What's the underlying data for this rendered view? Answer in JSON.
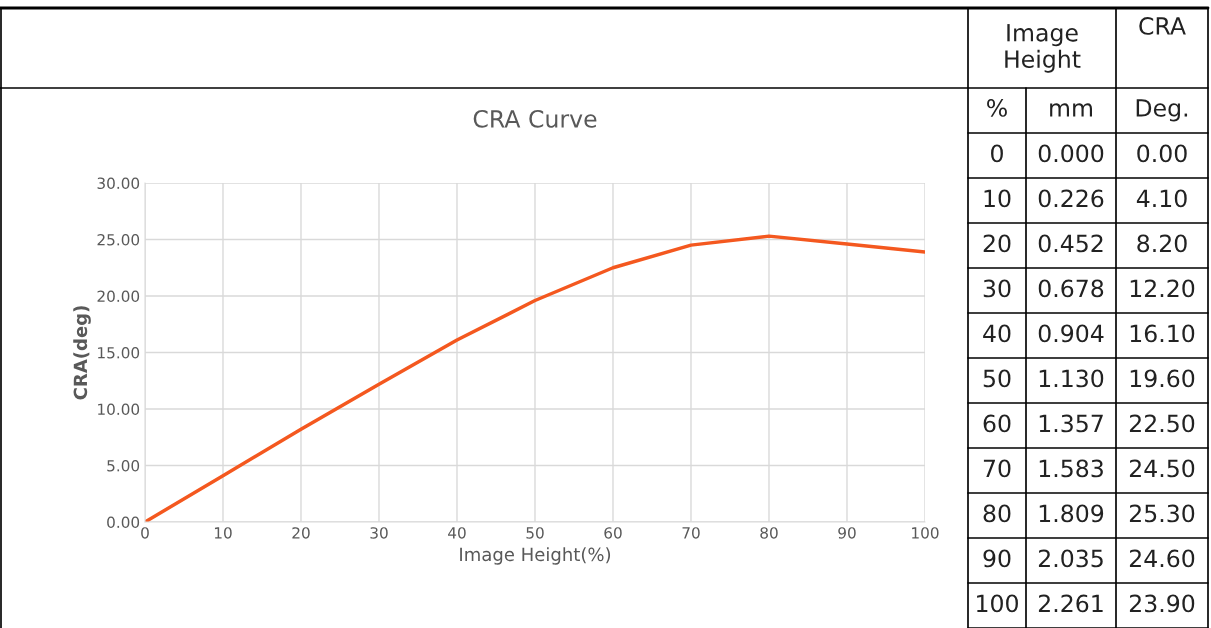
{
  "chart_data": {
    "type": "line",
    "title": "CRA Curve",
    "xlabel": "Image Height(%)",
    "ylabel": "CRA(deg)",
    "x": [
      0,
      10,
      20,
      30,
      40,
      50,
      60,
      70,
      80,
      90,
      100
    ],
    "series": [
      {
        "color": "#f4581f",
        "values": [
          0.0,
          4.1,
          8.2,
          12.2,
          16.1,
          19.6,
          22.5,
          24.5,
          25.3,
          24.6,
          23.9
        ]
      }
    ],
    "xlim": [
      0,
      100
    ],
    "xticks": [
      0,
      10,
      20,
      30,
      40,
      50,
      60,
      70,
      80,
      90,
      100
    ],
    "ylim": [
      0,
      30
    ],
    "yticks": [
      {
        "value": 0,
        "label": "0.00"
      },
      {
        "value": 5,
        "label": "5.00"
      },
      {
        "value": 10,
        "label": "10.00"
      },
      {
        "value": 15,
        "label": "15.00"
      },
      {
        "value": 20,
        "label": "20.00"
      },
      {
        "value": 25,
        "label": "25.00"
      },
      {
        "value": 30,
        "label": "30.00"
      }
    ],
    "grid": true,
    "legend": false,
    "marker": "none",
    "line_style": "solid",
    "annotations": [
      "Image Height",
      "CRA",
      "%",
      "mm",
      "Deg.",
      "0",
      "0.000",
      "0.00",
      "10",
      "0.226",
      "4.10",
      "20",
      "0.452",
      "8.20",
      "30",
      "0.678",
      "12.20",
      "40",
      "0.904",
      "16.10",
      "50",
      "1.130",
      "19.60",
      "60",
      "1.357",
      "22.50",
      "70",
      "1.583",
      "24.50",
      "80",
      "1.809",
      "25.30",
      "90",
      "2.035",
      "24.60",
      "100",
      "2.261",
      "23.90"
    ]
  }
}
